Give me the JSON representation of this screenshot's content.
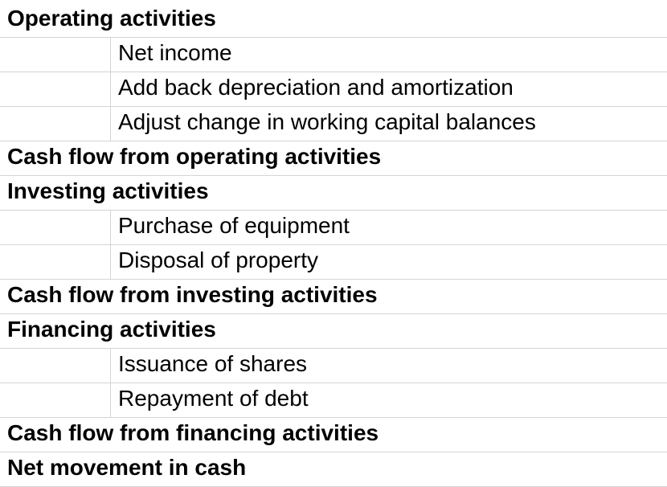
{
  "rows": [
    {
      "label": "Operating activities",
      "type": "header"
    },
    {
      "label": "Net income",
      "type": "item"
    },
    {
      "label": "Add back depreciation and amortization",
      "type": "item"
    },
    {
      "label": "Adjust change in working capital balances",
      "type": "item"
    },
    {
      "label": "Cash flow from operating activities",
      "type": "header"
    },
    {
      "label": "Investing activities",
      "type": "header"
    },
    {
      "label": "Purchase of equipment",
      "type": "item"
    },
    {
      "label": "Disposal of property",
      "type": "item"
    },
    {
      "label": "Cash flow from investing activities",
      "type": "header"
    },
    {
      "label": "Financing activities",
      "type": "header"
    },
    {
      "label": "Issuance of shares",
      "type": "item"
    },
    {
      "label": "Repayment of debt",
      "type": "item"
    },
    {
      "label": "Cash flow from financing activities",
      "type": "header"
    },
    {
      "label": "Net movement in cash",
      "type": "header"
    }
  ]
}
